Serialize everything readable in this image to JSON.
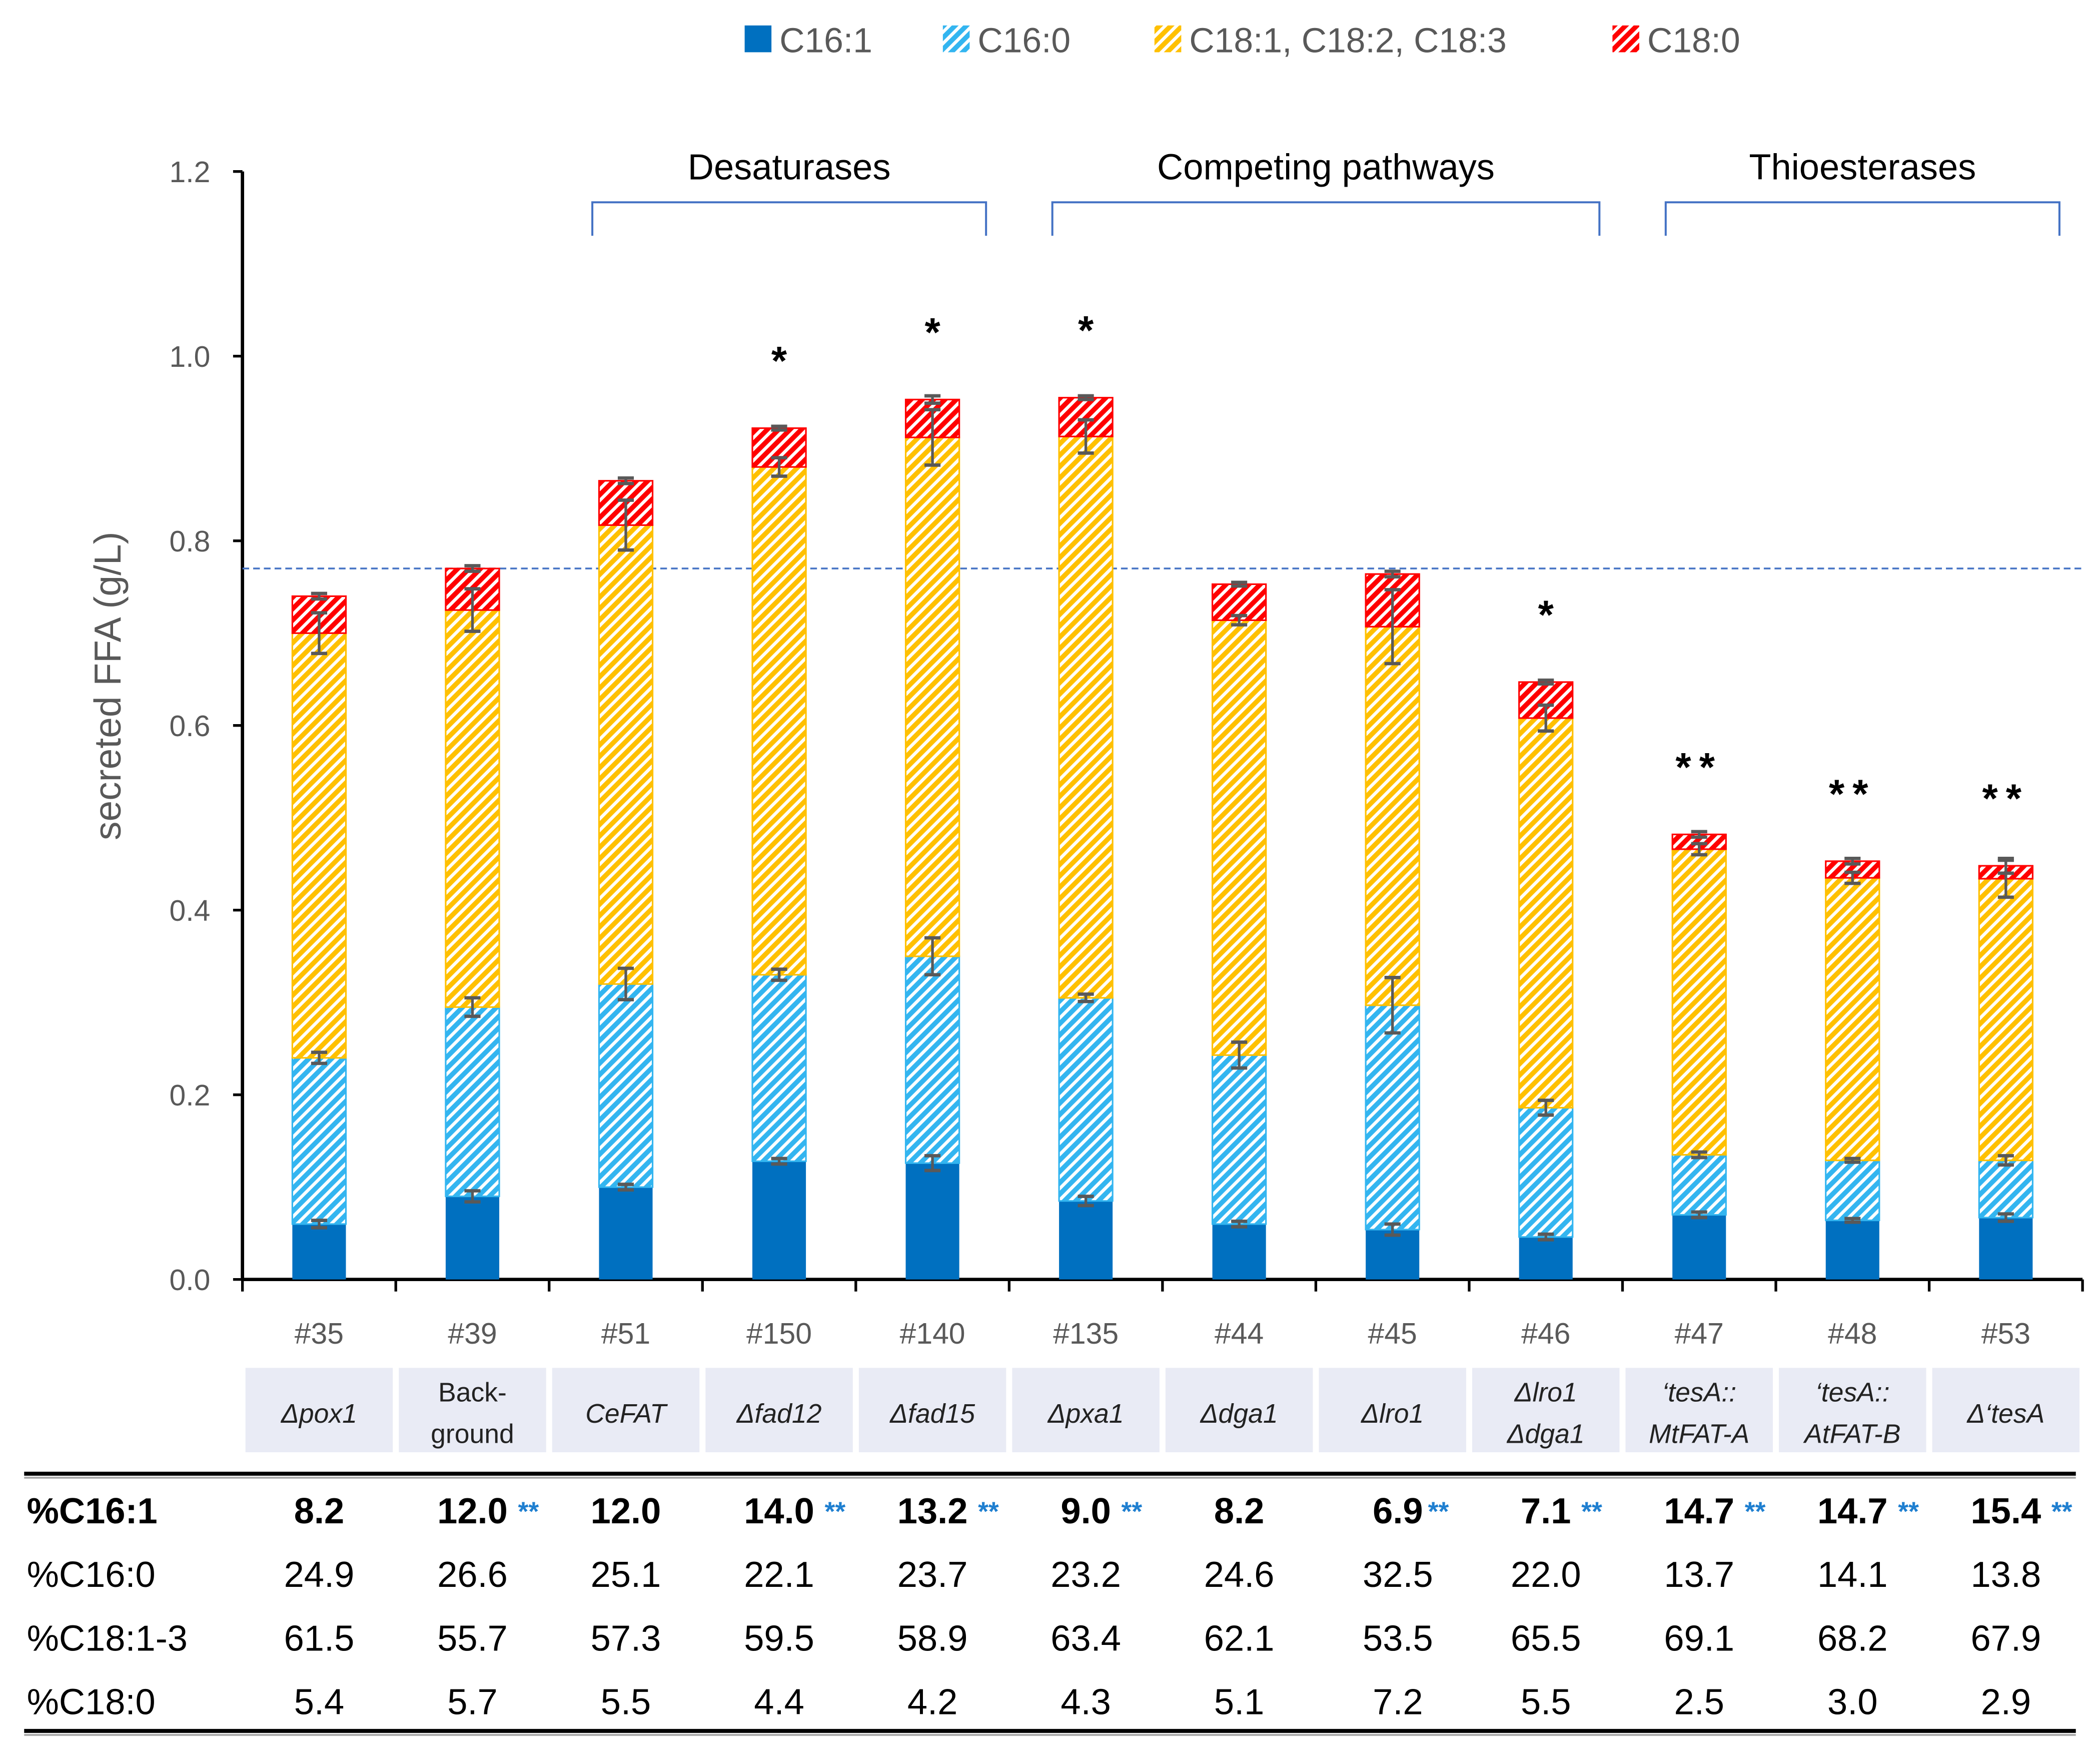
{
  "colors": {
    "c16_1": "#0070c0",
    "c16_0": "#33b5f0",
    "c18_1_3": "#ffc000",
    "c18_0": "#ff0000",
    "bracket": "#4472c4",
    "axis": "#000000"
  },
  "chart_data": {
    "type": "bar",
    "stacked": true,
    "title": "",
    "xlabel": "",
    "ylabel": "secreted FFA (g/L)",
    "ylim": [
      0,
      1.2
    ],
    "yticks": [
      "0.0",
      "0.2",
      "0.4",
      "0.6",
      "0.8",
      "1.0",
      "1.2"
    ],
    "grid": false,
    "legend_position": "top-center",
    "reference_line": 0.77,
    "categories": [
      "#35",
      "#39",
      "#51",
      "#150",
      "#140",
      "#135",
      "#44",
      "#45",
      "#46",
      "#47",
      "#48",
      "#53"
    ],
    "strain_labels": [
      [
        "Δpox1"
      ],
      [
        "Back-",
        "ground"
      ],
      [
        "CeFAT"
      ],
      [
        "Δfad12"
      ],
      [
        "Δfad15"
      ],
      [
        "Δpxa1"
      ],
      [
        "Δdga1"
      ],
      [
        "Δlro1"
      ],
      [
        "Δlro1",
        "Δdga1"
      ],
      [
        "‘tesA::",
        "MtFAT-A"
      ],
      [
        "‘tesA::",
        "AtFAT-B"
      ],
      [
        "Δ‘tesA"
      ]
    ],
    "series": [
      {
        "name": "C16:1",
        "key": "c16_1",
        "values": [
          0.06,
          0.09,
          0.1,
          0.128,
          0.126,
          0.085,
          0.06,
          0.054,
          0.046,
          0.07,
          0.064,
          0.067
        ],
        "errors": [
          0.004,
          0.006,
          0.003,
          0.003,
          0.008,
          0.005,
          0.003,
          0.006,
          0.003,
          0.003,
          0.002,
          0.004
        ]
      },
      {
        "name": "C16:0",
        "key": "c16_0",
        "values": [
          0.18,
          0.205,
          0.22,
          0.202,
          0.224,
          0.22,
          0.183,
          0.243,
          0.14,
          0.065,
          0.065,
          0.062
        ],
        "errors": [
          0.006,
          0.01,
          0.017,
          0.006,
          0.02,
          0.004,
          0.014,
          0.03,
          0.008,
          0.003,
          0.002,
          0.005
        ]
      },
      {
        "name": "C18:1, C18:2, C18:3",
        "key": "c18_1_3",
        "values": [
          0.46,
          0.43,
          0.497,
          0.55,
          0.562,
          0.608,
          0.471,
          0.41,
          0.422,
          0.331,
          0.306,
          0.305
        ],
        "errors": [
          0.022,
          0.023,
          0.027,
          0.01,
          0.03,
          0.018,
          0.005,
          0.04,
          0.014,
          0.006,
          0.006,
          0.02
        ]
      },
      {
        "name": "C18:0",
        "key": "c18_0",
        "values": [
          0.04,
          0.045,
          0.048,
          0.042,
          0.041,
          0.042,
          0.039,
          0.057,
          0.039,
          0.016,
          0.018,
          0.014
        ],
        "errors": [
          0.003,
          0.003,
          0.003,
          0.002,
          0.004,
          0.002,
          0.002,
          0.003,
          0.002,
          0.003,
          0.003,
          0.008
        ]
      }
    ],
    "significance": [
      "",
      "",
      "",
      "*",
      "*",
      "*",
      "",
      "",
      "*",
      "**",
      "**",
      "**"
    ],
    "groups": [
      {
        "label": "Desaturases",
        "from": 2,
        "to": 4
      },
      {
        "label": "Competing pathways",
        "from": 5,
        "to": 8
      },
      {
        "label": "Thioesterases",
        "from": 9,
        "to": 11
      }
    ]
  },
  "table": {
    "rows": [
      {
        "label": "%C16:1",
        "bold": true,
        "values": [
          "8.2",
          "12.0",
          "12.0",
          "14.0",
          "13.2",
          "9.0",
          "8.2",
          "6.9",
          "7.1",
          "14.7",
          "14.7",
          "15.4"
        ],
        "marks": [
          "",
          "**",
          "",
          "**",
          "**",
          "**",
          "",
          "**",
          "**",
          "**",
          "**",
          "**"
        ]
      },
      {
        "label": "%C16:0",
        "bold": false,
        "values": [
          "24.9",
          "26.6",
          "25.1",
          "22.1",
          "23.7",
          "23.2",
          "24.6",
          "32.5",
          "22.0",
          "13.7",
          "14.1",
          "13.8"
        ]
      },
      {
        "label": "%C18:1-3",
        "bold": false,
        "values": [
          "61.5",
          "55.7",
          "57.3",
          "59.5",
          "58.9",
          "63.4",
          "62.1",
          "53.5",
          "65.5",
          "69.1",
          "68.2",
          "67.9"
        ]
      },
      {
        "label": "%C18:0",
        "bold": false,
        "values": [
          "5.4",
          "5.7",
          "5.5",
          "4.4",
          "4.2",
          "4.3",
          "5.1",
          "7.2",
          "5.5",
          "2.5",
          "3.0",
          "2.9"
        ]
      }
    ]
  }
}
